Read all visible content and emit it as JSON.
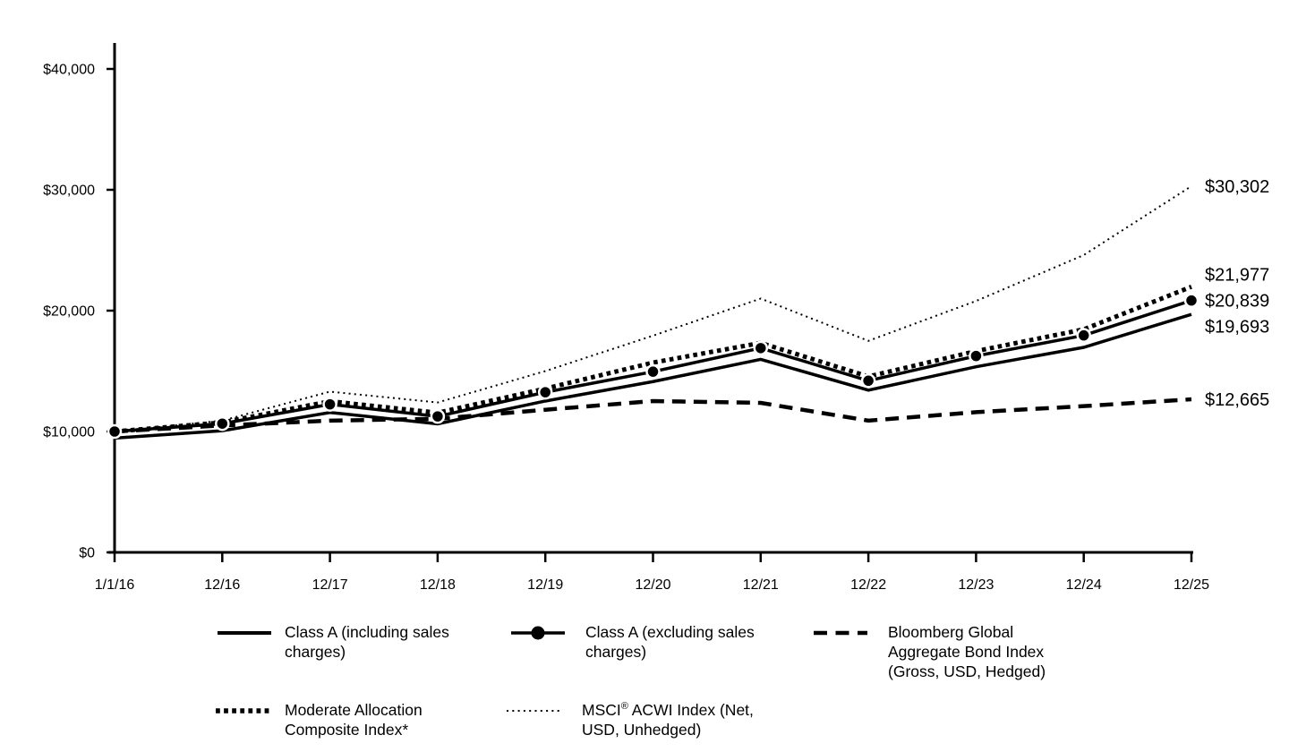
{
  "colors": {
    "line": "#000000",
    "background": "#ffffff",
    "text": "#000000"
  },
  "chart_data": {
    "type": "line",
    "title": "",
    "xlabel": "",
    "ylabel": "",
    "grid": false,
    "legend_position": "bottom",
    "ylim": [
      0,
      40000
    ],
    "y_ticks": [
      {
        "value": 0,
        "label": "$0"
      },
      {
        "value": 10000,
        "label": "$10,000"
      },
      {
        "value": 20000,
        "label": "$20,000"
      },
      {
        "value": 30000,
        "label": "$30,000"
      },
      {
        "value": 40000,
        "label": "$40,000"
      }
    ],
    "x_categories": [
      "1/1/16",
      "12/16",
      "12/17",
      "12/18",
      "12/19",
      "12/20",
      "12/21",
      "12/22",
      "12/23",
      "12/24",
      "12/25"
    ],
    "series": [
      {
        "name": "MSCI® ACWI Index (Net, USD, Unhedged)",
        "style": "dotted-fine",
        "values": [
          10000,
          10900,
          13300,
          12400,
          15000,
          17930,
          21000,
          17500,
          20800,
          24600,
          30302
        ],
        "end_label": "$30,302"
      },
      {
        "name": "Bloomberg Global Aggregate Bond Index (Gross, USD, Hedged)",
        "style": "dashed",
        "values": [
          10000,
          10500,
          10900,
          11050,
          11800,
          12520,
          12370,
          10900,
          11600,
          12100,
          12665
        ],
        "end_label": "$12,665"
      },
      {
        "name": "Class A (including sales charges)",
        "style": "solid",
        "values": [
          9450,
          10064,
          11576,
          10631,
          12521,
          14128,
          15971,
          13419,
          15356,
          16963,
          19693
        ],
        "end_label": "$19,693"
      },
      {
        "name": "Class A (excluding sales charges)",
        "style": "solid-marker",
        "values": [
          10000,
          10650,
          12250,
          11250,
          13250,
          14950,
          16900,
          14200,
          16250,
          17950,
          20839
        ],
        "end_label": "$20,839"
      },
      {
        "name": "Moderate Allocation Composite Index*",
        "style": "dotted-thick",
        "values": [
          10000,
          10750,
          12500,
          11550,
          13550,
          15700,
          17330,
          14550,
          16650,
          18450,
          21977
        ],
        "end_label": "$21,977"
      }
    ]
  },
  "legend": {
    "rows": [
      [
        {
          "style": "solid",
          "lines": [
            "Class A (including sales",
            "charges)"
          ]
        },
        {
          "style": "solid-marker",
          "lines": [
            "Class A (excluding sales",
            "charges)"
          ]
        },
        {
          "style": "dashed",
          "lines": [
            "Bloomberg Global",
            "Aggregate Bond Index",
            "(Gross, USD, Hedged)"
          ]
        }
      ],
      [
        {
          "style": "dotted-thick",
          "lines": [
            "Moderate Allocation",
            "Composite Index*"
          ]
        },
        {
          "style": "dotted-fine",
          "lines": [
            "MSCI® ACWI Index (Net,",
            "USD, Unhedged)"
          ]
        }
      ]
    ]
  }
}
